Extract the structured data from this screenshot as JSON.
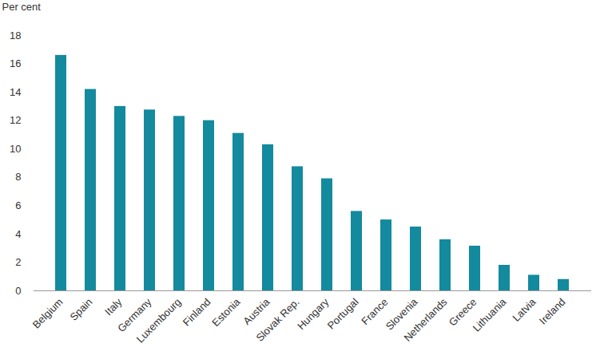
{
  "chart_data": {
    "type": "bar",
    "y_label": "Per cent",
    "categories": [
      "Belgium",
      "Spain",
      "Italy",
      "Germany",
      "Luxembourg",
      "Finland",
      "Estonia",
      "Austria",
      "Slovak Rep.",
      "Hungary",
      "Portugal",
      "France",
      "Slovenia",
      "Netherlands",
      "Greece",
      "Lithuania",
      "Latvia",
      "Ireland"
    ],
    "values": [
      16.6,
      14.2,
      13.0,
      12.75,
      12.3,
      12.0,
      11.1,
      10.3,
      8.75,
      7.9,
      5.6,
      5.0,
      4.5,
      3.6,
      3.15,
      1.8,
      1.1,
      0.8
    ],
    "color": "#138a9e",
    "ylim": [
      0,
      18
    ],
    "yticks": [
      0,
      2,
      4,
      6,
      8,
      10,
      12,
      14,
      16,
      18
    ],
    "grid": false
  }
}
